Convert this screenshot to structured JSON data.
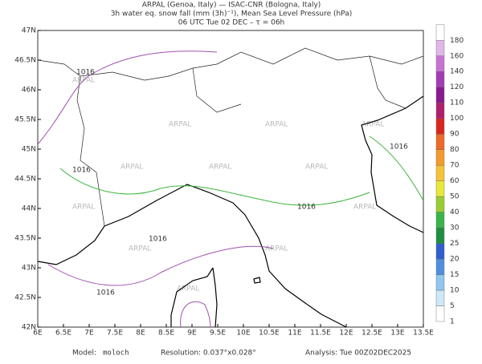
{
  "header": {
    "line1": "ARPAL (Genoa, Italy)  —  ISAC-CNR (Bologna, Italy)",
    "line2": "3h water eq. snow fall (mm (3h)⁻¹), Mean Sea Level Pressure (hPa)",
    "line3": "06 UTC Tue 02 DEC  –  τ = 06h"
  },
  "map": {
    "lonlim": [
      6,
      13.5
    ],
    "latlim": [
      42,
      47
    ],
    "lonticks": [
      {
        "value": 6,
        "label": "6E"
      },
      {
        "value": 6.5,
        "label": "6.5E"
      },
      {
        "value": 7,
        "label": "7E"
      },
      {
        "value": 7.5,
        "label": "7.5E"
      },
      {
        "value": 8,
        "label": "8E"
      },
      {
        "value": 8.5,
        "label": "8.5E"
      },
      {
        "value": 9,
        "label": "9E"
      },
      {
        "value": 9.5,
        "label": "9.5E"
      },
      {
        "value": 10,
        "label": "10E"
      },
      {
        "value": 10.5,
        "label": "10.5E"
      },
      {
        "value": 11,
        "label": "11E"
      },
      {
        "value": 11.5,
        "label": "11.5E"
      },
      {
        "value": 12,
        "label": "12E"
      },
      {
        "value": 12.5,
        "label": "12.5E"
      },
      {
        "value": 13,
        "label": "13E"
      },
      {
        "value": 13.5,
        "label": "13.5E"
      }
    ],
    "latticks": [
      {
        "value": 42,
        "label": "42N"
      },
      {
        "value": 42.5,
        "label": "42.5N"
      },
      {
        "value": 43,
        "label": "43N"
      },
      {
        "value": 43.5,
        "label": "43.5N"
      },
      {
        "value": 44,
        "label": "44N"
      },
      {
        "value": 44.5,
        "label": "44.5N"
      },
      {
        "value": 45,
        "label": "45N"
      },
      {
        "value": 45.5,
        "label": "45.5N"
      },
      {
        "value": 46,
        "label": "46N"
      },
      {
        "value": 46.5,
        "label": "46.5N"
      },
      {
        "value": 47,
        "label": "47N"
      }
    ],
    "isobar_label": "1016",
    "watermark": "ARPAL"
  },
  "colorbar": {
    "levels": [
      1,
      5,
      10,
      15,
      20,
      25,
      30,
      40,
      50,
      60,
      70,
      80,
      90,
      100,
      110,
      120,
      140,
      160,
      180
    ],
    "colors": [
      "#ffffff",
      "#cfe8f7",
      "#8fc7ee",
      "#4f8fe0",
      "#2f5fd0",
      "#1f8f3f",
      "#39b54a",
      "#9acd32",
      "#e8e83a",
      "#f6c238",
      "#f39b2e",
      "#ee6a28",
      "#d9261c",
      "#b01f6e",
      "#8a1a8f",
      "#a23cb5",
      "#c873d4",
      "#e3b6ea",
      "#ffffff"
    ]
  },
  "footer": {
    "model_label": "Model:",
    "model": "moloch",
    "resolution": "Resolution: 0.037°x0.028°",
    "analysis": "Analysis: Tue 00Z02DEC2025"
  }
}
